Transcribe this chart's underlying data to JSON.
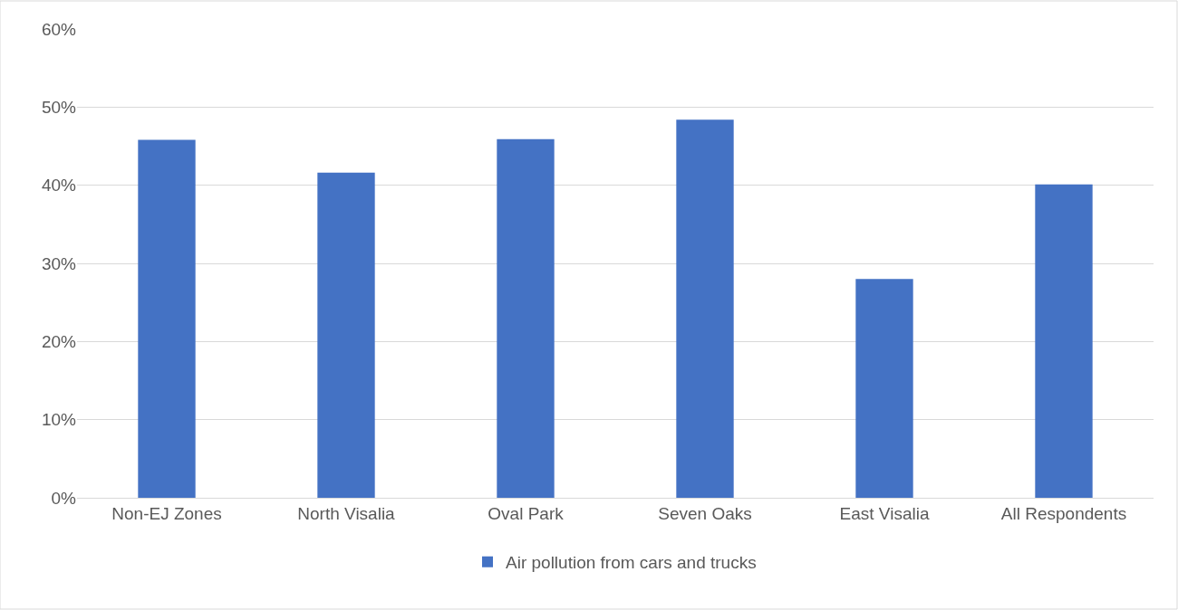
{
  "chart_data": {
    "type": "bar",
    "categories": [
      "Non-EJ Zones",
      "North Visalia",
      "Oval Park",
      "Seven Oaks",
      "East Visalia",
      "All Respondents"
    ],
    "series": [
      {
        "name": "Air pollution from cars and trucks",
        "color": "#4472c4",
        "values": [
          45.8,
          41.6,
          45.9,
          48.4,
          28.0,
          40.1
        ]
      }
    ],
    "ylim": [
      0,
      60
    ],
    "yticks": [
      {
        "value": 0,
        "label": "0%"
      },
      {
        "value": 10,
        "label": "10%"
      },
      {
        "value": 20,
        "label": "20%"
      },
      {
        "value": 30,
        "label": "30%"
      },
      {
        "value": 40,
        "label": "40%"
      },
      {
        "value": 50,
        "label": "50%"
      },
      {
        "value": 60,
        "label": "60%"
      }
    ],
    "grid": "y",
    "legend": "bottom"
  }
}
